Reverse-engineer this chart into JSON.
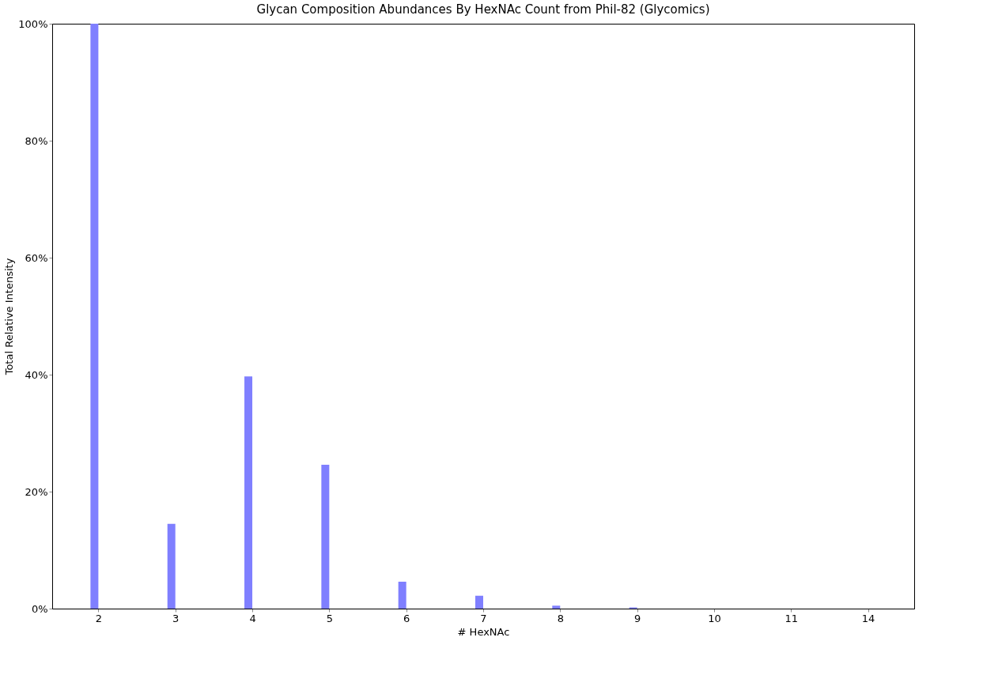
{
  "chart_data": {
    "type": "bar",
    "title": "Glycan Composition Abundances By HexNAc Count from Phil-82 (Glycomics)",
    "xlabel": "# HexNAc",
    "ylabel": "Total Relative Intensity",
    "categories": [
      "2",
      "3",
      "4",
      "5",
      "6",
      "7",
      "8",
      "9",
      "10",
      "11",
      "14"
    ],
    "values": [
      100,
      14.5,
      39.7,
      24.6,
      4.6,
      2.2,
      0.5,
      0.2,
      0,
      0,
      0
    ],
    "color": "#7f7fff",
    "ylim": [
      0,
      100
    ],
    "yticks": [
      {
        "value": 0,
        "label": "0%"
      },
      {
        "value": 20,
        "label": "20%"
      },
      {
        "value": 40,
        "label": "40%"
      },
      {
        "value": 60,
        "label": "60%"
      },
      {
        "value": 80,
        "label": "80%"
      },
      {
        "value": 100,
        "label": "100%"
      }
    ],
    "grid": false
  }
}
